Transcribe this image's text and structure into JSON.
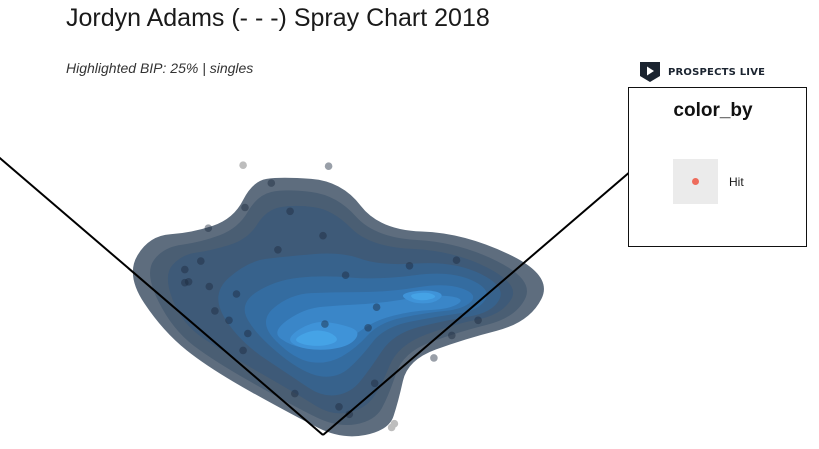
{
  "header": {
    "title": "Jordyn Adams (- - -) Spray Chart 2018",
    "subtitle": "Highlighted BIP: 25% | singles"
  },
  "brand": {
    "name": "PROSPECTS LIVE",
    "icon": "play-shield-icon",
    "color": "#1b2430"
  },
  "legend": {
    "title": "color_by",
    "items": [
      {
        "label": "Hit",
        "color": "#ee6c5c"
      }
    ]
  },
  "chart_data": {
    "type": "scatter",
    "title": "Jordyn Adams (- - -) Spray Chart 2018",
    "subtitle": "Highlighted BIP: 25% | singles",
    "overlay": "2d density contours, dark slate to light blue",
    "density_colors": [
      "#5e6d7e",
      "#4a5e73",
      "#3e5a78",
      "#37628c",
      "#346ca0",
      "#3477b4",
      "#3a86c8",
      "#3f93d8",
      "#45a3e6"
    ],
    "legend": {
      "title": "color_by",
      "entries": [
        "Hit"
      ],
      "placement": "right"
    },
    "grid": false,
    "axes_visible": false,
    "xlim": [
      -300,
      300
    ],
    "ylim": [
      -20,
      420
    ],
    "field_lines": [
      {
        "name": "left-foul-line",
        "from": [
          0,
          0
        ],
        "to": [
          -350,
          300
        ]
      },
      {
        "name": "right-foul-line",
        "from": [
          0,
          0
        ],
        "to": [
          350,
          300
        ]
      }
    ],
    "points_in_density": [
      [
        -83,
        242
      ],
      [
        -55,
        268
      ],
      [
        -48,
        197
      ],
      [
        -122,
        220
      ],
      [
        -130,
        185
      ],
      [
        -147,
        176
      ],
      [
        -147,
        162
      ],
      [
        -143,
        163
      ],
      [
        -121,
        158
      ],
      [
        -92,
        150
      ],
      [
        -115,
        132
      ],
      [
        -100,
        122
      ],
      [
        -80,
        108
      ],
      [
        -35,
        238
      ],
      [
        0,
        212
      ],
      [
        24,
        170
      ],
      [
        48,
        114
      ],
      [
        55,
        55
      ],
      [
        17,
        30
      ],
      [
        28,
        22
      ],
      [
        -30,
        44
      ],
      [
        -85,
        90
      ],
      [
        2,
        118
      ],
      [
        57,
        136
      ],
      [
        92,
        180
      ],
      [
        142,
        186
      ],
      [
        165,
        122
      ],
      [
        137,
        106
      ],
      [
        118,
        82
      ],
      [
        6,
        286
      ]
    ],
    "points_outside": [
      [
        -85,
        287
      ],
      [
        76,
        12
      ],
      [
        73,
        8
      ]
    ]
  }
}
